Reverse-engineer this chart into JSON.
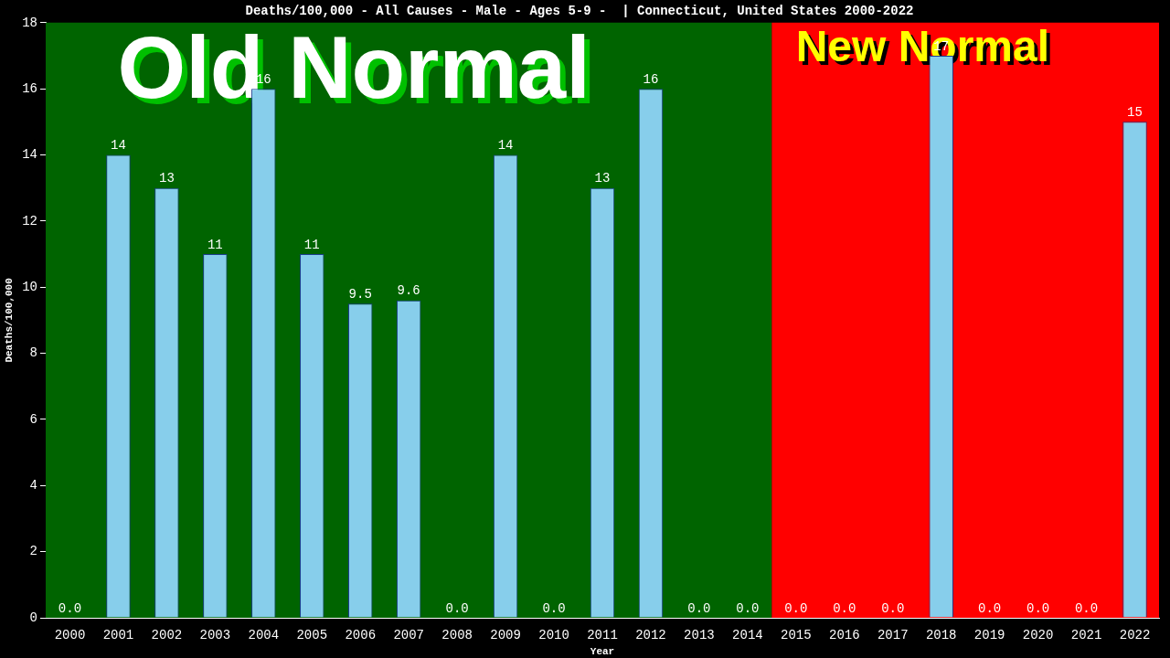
{
  "chart_data": {
    "type": "bar",
    "title": "Deaths/100,000 - All Causes - Male - Ages 5-9 -  | Connecticut, United States 2000-2022",
    "xlabel": "Year",
    "ylabel": "Deaths/100,000",
    "categories": [
      "2000",
      "2001",
      "2002",
      "2003",
      "2004",
      "2005",
      "2006",
      "2007",
      "2008",
      "2009",
      "2010",
      "2011",
      "2012",
      "2013",
      "2014",
      "2015",
      "2016",
      "2017",
      "2018",
      "2019",
      "2020",
      "2021",
      "2022"
    ],
    "values": [
      0,
      14,
      13,
      11,
      16,
      11,
      9.5,
      9.6,
      0,
      14,
      0,
      13,
      16,
      0,
      0,
      0,
      0,
      0,
      17,
      0,
      0,
      0,
      15
    ],
    "value_labels": [
      "0.0",
      "14",
      "13",
      "11",
      "16",
      "11",
      "9.5",
      "9.6",
      "0.0",
      "14",
      "0.0",
      "13",
      "16",
      "0.0",
      "0.0",
      "0.0",
      "0.0",
      "0.0",
      "17",
      "0.0",
      "0.0",
      "0.0",
      "15"
    ],
    "color": "#87ceeb",
    "ylim": [
      0,
      18
    ],
    "yticks": [
      0,
      2,
      4,
      6,
      8,
      10,
      12,
      14,
      16,
      18
    ],
    "grid": false,
    "legend": false,
    "bands": [
      {
        "axis": "x",
        "from": "2000",
        "to": "2014",
        "label": "Old Normal",
        "color": "#006400"
      },
      {
        "axis": "x",
        "from": "2015",
        "to": "2022",
        "label": "New Normal",
        "color": "#ff0000"
      }
    ]
  }
}
